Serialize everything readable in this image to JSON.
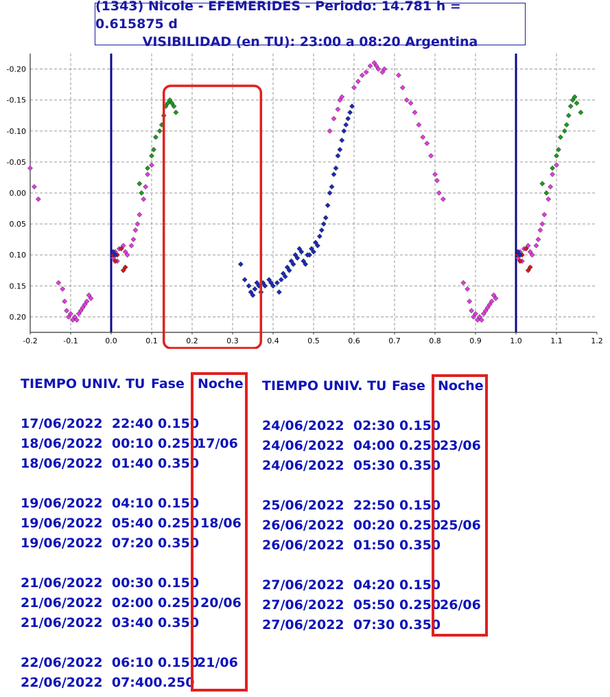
{
  "title": {
    "line1": "(1343) Nicole - EFEMERIDES - Periodo: 14.781 h = 0.615875 d",
    "line2": "VISIBILIDAD (en TU): 23:00 a 08:20 Argentina"
  },
  "colors": {
    "title": "#1a1aa6",
    "text": "#0d14b8",
    "highlight": "#e02020",
    "navy": "#0b0b8a",
    "magenta": "#e23be0",
    "green": "#1f9a1f",
    "red": "#d11a1a",
    "blue": "#1a2ab8"
  },
  "chart_data": {
    "type": "scatter",
    "xlim": [
      -0.2,
      1.2
    ],
    "ylim": [
      0.225,
      -0.225
    ],
    "y_inverted": true,
    "grid": true,
    "x_ticks": [
      "-0.2",
      "-0.1",
      "0.0",
      "0.1",
      "0.2",
      "0.3",
      "0.4",
      "0.5",
      "0.6",
      "0.7",
      "0.8",
      "0.9",
      "1.0",
      "1.1",
      "1.2"
    ],
    "y_ticks": [
      "-0.20",
      "-0.15",
      "-0.10",
      "-0.05",
      "0.00",
      "0.05",
      "0.10",
      "0.15",
      "0.20"
    ],
    "vertical_lines": [
      0.0,
      1.0
    ],
    "highlight_x_range": [
      0.13,
      0.37
    ],
    "series": [
      {
        "color": "magenta",
        "points": [
          [
            -0.2,
            -0.04
          ],
          [
            -0.19,
            -0.01
          ],
          [
            -0.18,
            0.01
          ],
          [
            -0.13,
            0.145
          ],
          [
            -0.12,
            0.155
          ],
          [
            -0.115,
            0.175
          ],
          [
            -0.11,
            0.19
          ],
          [
            -0.105,
            0.2
          ],
          [
            -0.1,
            0.195
          ],
          [
            -0.095,
            0.205
          ],
          [
            -0.09,
            0.2
          ],
          [
            -0.085,
            0.205
          ],
          [
            -0.08,
            0.195
          ],
          [
            -0.075,
            0.19
          ],
          [
            -0.07,
            0.185
          ],
          [
            -0.065,
            0.18
          ],
          [
            -0.06,
            0.175
          ],
          [
            -0.055,
            0.165
          ],
          [
            -0.05,
            0.17
          ],
          [
            0.005,
            0.105
          ],
          [
            0.01,
            0.095
          ],
          [
            0.015,
            0.11
          ],
          [
            0.02,
            0.09
          ],
          [
            0.03,
            0.085
          ],
          [
            0.035,
            0.095
          ],
          [
            0.04,
            0.1
          ],
          [
            0.05,
            0.085
          ],
          [
            0.055,
            0.075
          ],
          [
            0.06,
            0.06
          ],
          [
            0.065,
            0.05
          ],
          [
            0.07,
            0.035
          ],
          [
            0.08,
            0.01
          ],
          [
            0.085,
            -0.01
          ],
          [
            0.09,
            -0.03
          ],
          [
            0.1,
            -0.045
          ],
          [
            0.54,
            -0.1
          ],
          [
            0.55,
            -0.12
          ],
          [
            0.56,
            -0.135
          ],
          [
            0.565,
            -0.15
          ],
          [
            0.57,
            -0.155
          ],
          [
            0.6,
            -0.17
          ],
          [
            0.61,
            -0.18
          ],
          [
            0.62,
            -0.19
          ],
          [
            0.63,
            -0.195
          ],
          [
            0.64,
            -0.205
          ],
          [
            0.65,
            -0.21
          ],
          [
            0.655,
            -0.205
          ],
          [
            0.66,
            -0.2
          ],
          [
            0.67,
            -0.195
          ],
          [
            0.675,
            -0.2
          ],
          [
            0.71,
            -0.19
          ],
          [
            0.72,
            -0.17
          ],
          [
            0.73,
            -0.15
          ],
          [
            0.74,
            -0.145
          ],
          [
            0.75,
            -0.13
          ],
          [
            0.76,
            -0.11
          ],
          [
            0.77,
            -0.09
          ],
          [
            0.78,
            -0.08
          ],
          [
            0.79,
            -0.06
          ],
          [
            0.8,
            -0.03
          ],
          [
            0.805,
            -0.02
          ],
          [
            0.81,
            0.0
          ],
          [
            0.82,
            0.01
          ],
          [
            0.87,
            0.145
          ],
          [
            0.88,
            0.155
          ],
          [
            0.885,
            0.175
          ],
          [
            0.89,
            0.19
          ],
          [
            0.895,
            0.2
          ],
          [
            0.9,
            0.195
          ],
          [
            0.905,
            0.205
          ],
          [
            0.91,
            0.2
          ],
          [
            0.915,
            0.205
          ],
          [
            0.92,
            0.195
          ],
          [
            0.925,
            0.19
          ],
          [
            0.93,
            0.185
          ],
          [
            0.935,
            0.18
          ],
          [
            0.94,
            0.175
          ],
          [
            0.945,
            0.165
          ],
          [
            0.95,
            0.17
          ],
          [
            1.005,
            0.105
          ],
          [
            1.01,
            0.095
          ],
          [
            1.015,
            0.11
          ],
          [
            1.02,
            0.09
          ],
          [
            1.03,
            0.085
          ],
          [
            1.035,
            0.095
          ],
          [
            1.04,
            0.1
          ],
          [
            1.05,
            0.085
          ],
          [
            1.055,
            0.075
          ],
          [
            1.06,
            0.06
          ],
          [
            1.065,
            0.05
          ],
          [
            1.07,
            0.035
          ],
          [
            1.08,
            0.01
          ],
          [
            1.085,
            -0.01
          ],
          [
            1.09,
            -0.03
          ],
          [
            1.1,
            -0.045
          ]
        ]
      },
      {
        "color": "green",
        "points": [
          [
            0.07,
            -0.015
          ],
          [
            0.075,
            0.0
          ],
          [
            0.09,
            -0.04
          ],
          [
            0.1,
            -0.06
          ],
          [
            0.105,
            -0.07
          ],
          [
            0.11,
            -0.09
          ],
          [
            0.12,
            -0.1
          ],
          [
            0.125,
            -0.11
          ],
          [
            0.13,
            -0.125
          ],
          [
            0.135,
            -0.14
          ],
          [
            0.14,
            -0.145
          ],
          [
            0.145,
            -0.15
          ],
          [
            0.15,
            -0.145
          ],
          [
            0.16,
            -0.13
          ],
          [
            0.155,
            -0.14
          ],
          [
            1.065,
            -0.015
          ],
          [
            1.075,
            0.0
          ],
          [
            1.09,
            -0.04
          ],
          [
            1.1,
            -0.06
          ],
          [
            1.105,
            -0.07
          ],
          [
            1.11,
            -0.09
          ],
          [
            1.12,
            -0.1
          ],
          [
            1.125,
            -0.11
          ],
          [
            1.13,
            -0.125
          ],
          [
            1.135,
            -0.14
          ],
          [
            1.14,
            -0.15
          ],
          [
            1.145,
            -0.155
          ],
          [
            1.15,
            -0.145
          ],
          [
            1.16,
            -0.13
          ]
        ]
      },
      {
        "color": "red",
        "points": [
          [
            0.005,
            0.1
          ],
          [
            0.01,
            0.11
          ],
          [
            0.015,
            0.1
          ],
          [
            0.025,
            0.09
          ],
          [
            0.03,
            0.125
          ],
          [
            0.035,
            0.12
          ],
          [
            1.005,
            0.1
          ],
          [
            1.01,
            0.11
          ],
          [
            1.015,
            0.1
          ],
          [
            1.025,
            0.09
          ],
          [
            1.03,
            0.125
          ],
          [
            1.035,
            0.12
          ]
        ]
      },
      {
        "color": "blue",
        "points": [
          [
            0.005,
            0.095
          ],
          [
            0.01,
            0.1
          ],
          [
            1.005,
            0.095
          ],
          [
            1.01,
            0.1
          ],
          [
            0.32,
            0.115
          ],
          [
            0.33,
            0.14
          ],
          [
            0.34,
            0.15
          ],
          [
            0.345,
            0.16
          ],
          [
            0.35,
            0.165
          ],
          [
            0.355,
            0.155
          ],
          [
            0.36,
            0.145
          ],
          [
            0.365,
            0.15
          ],
          [
            0.37,
            0.16
          ],
          [
            0.375,
            0.145
          ],
          [
            0.38,
            0.15
          ],
          [
            0.39,
            0.14
          ],
          [
            0.395,
            0.145
          ],
          [
            0.4,
            0.15
          ],
          [
            0.41,
            0.145
          ],
          [
            0.415,
            0.16
          ],
          [
            0.42,
            0.14
          ],
          [
            0.425,
            0.13
          ],
          [
            0.43,
            0.135
          ],
          [
            0.435,
            0.12
          ],
          [
            0.44,
            0.125
          ],
          [
            0.445,
            0.11
          ],
          [
            0.45,
            0.115
          ],
          [
            0.455,
            0.1
          ],
          [
            0.46,
            0.105
          ],
          [
            0.465,
            0.09
          ],
          [
            0.47,
            0.095
          ],
          [
            0.475,
            0.11
          ],
          [
            0.48,
            0.115
          ],
          [
            0.485,
            0.1
          ],
          [
            0.49,
            0.1
          ],
          [
            0.495,
            0.09
          ],
          [
            0.5,
            0.095
          ],
          [
            0.505,
            0.08
          ],
          [
            0.51,
            0.085
          ],
          [
            0.515,
            0.07
          ],
          [
            0.52,
            0.06
          ],
          [
            0.525,
            0.05
          ],
          [
            0.53,
            0.04
          ],
          [
            0.535,
            0.02
          ],
          [
            0.54,
            0.0
          ],
          [
            0.545,
            -0.01
          ],
          [
            0.55,
            -0.03
          ],
          [
            0.555,
            -0.04
          ],
          [
            0.56,
            -0.06
          ],
          [
            0.565,
            -0.07
          ],
          [
            0.57,
            -0.085
          ],
          [
            0.575,
            -0.1
          ],
          [
            0.58,
            -0.11
          ],
          [
            0.585,
            -0.12
          ],
          [
            0.59,
            -0.13
          ],
          [
            0.595,
            -0.14
          ]
        ]
      }
    ]
  },
  "table_left": {
    "header": {
      "time": "TIEMPO UNIV. TU",
      "phase": "Fase",
      "night": "Noche"
    },
    "rows": [
      "17/06/2022  22:40 0.150",
      "18/06/2022  00:10 0.250",
      "18/06/2022  01:40 0.350",
      "19/06/2022  04:10 0.150",
      "19/06/2022  05:40 0.250",
      "19/06/2022  07:20 0.350",
      "21/06/2022  00:30 0.150",
      "21/06/2022  02:00 0.250",
      "21/06/2022  03:40 0.350",
      "22/06/2022  06:10 0.150",
      "22/06/2022  07:400.250"
    ],
    "nights": [
      "17/06",
      "18/06",
      "20/06",
      "21/06"
    ]
  },
  "table_right": {
    "header": {
      "time": "TIEMPO UNIV. TU",
      "phase": "Fase",
      "night": "Noche"
    },
    "rows": [
      "24/06/2022  02:30 0.150",
      "24/06/2022  04:00 0.250",
      "24/06/2022  05:30 0.350",
      "25/06/2022  22:50 0.150",
      "26/06/2022  00:20 0.250",
      "26/06/2022  01:50 0.350",
      "27/06/2022  04:20 0.150",
      "27/06/2022  05:50 0.250",
      "27/06/2022  07:30 0.350"
    ],
    "nights": [
      "23/06",
      "25/06",
      "26/06"
    ]
  }
}
